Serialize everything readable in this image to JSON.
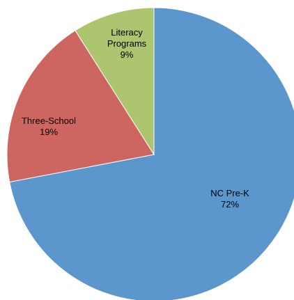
{
  "chart_data": {
    "type": "pie",
    "start_angle_deg": 0,
    "direction": "clockwise",
    "slices": [
      {
        "label": "NC Pre-K",
        "value": 72,
        "display": "72%",
        "label_lines": [
          "NC Pre-K"
        ],
        "color": "#5B96CC"
      },
      {
        "label": "Three-School",
        "value": 19,
        "display": "19%",
        "label_lines": [
          "Three-School"
        ],
        "color": "#CD6660"
      },
      {
        "label": "Literacy Programs",
        "value": 9,
        "display": "9%",
        "label_lines": [
          "Literacy",
          "Programs"
        ],
        "color": "#ADC56E"
      }
    ],
    "legend": "none"
  }
}
